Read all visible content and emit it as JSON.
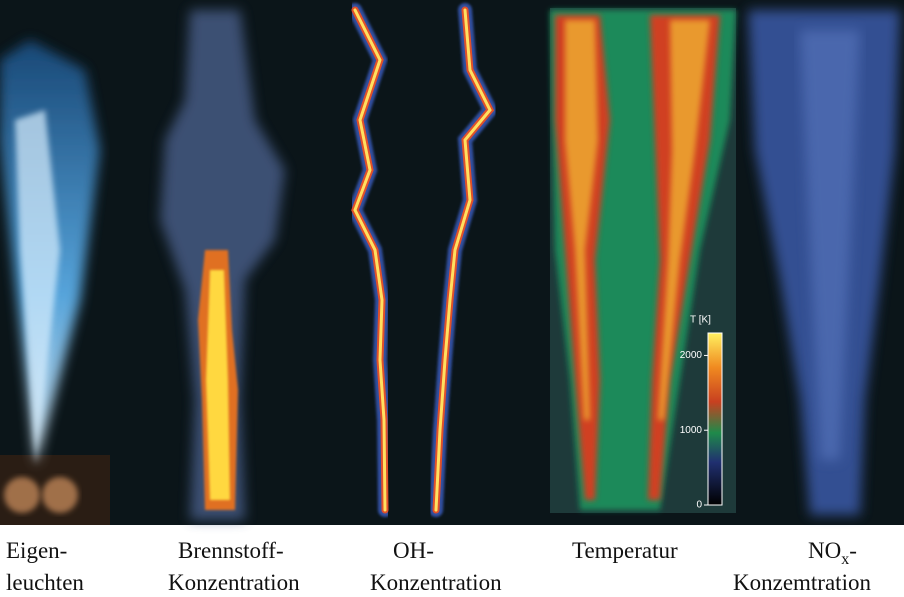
{
  "colorbar": {
    "title": "T [K]",
    "ticks": [
      0,
      1000,
      2000
    ],
    "lim": [
      0,
      2300
    ]
  },
  "captions": [
    {
      "line1": "Eigen-",
      "line2": "leuchten"
    },
    {
      "line1": "Brennstoff-",
      "line2": "Konzentration"
    },
    {
      "line1": "OH-",
      "line2": "Konzentration"
    },
    {
      "line1": "Temperatur"
    },
    {
      "line1": "NO",
      "sub": "x",
      "suffix": "-",
      "line2": "Konzemtration"
    }
  ]
}
